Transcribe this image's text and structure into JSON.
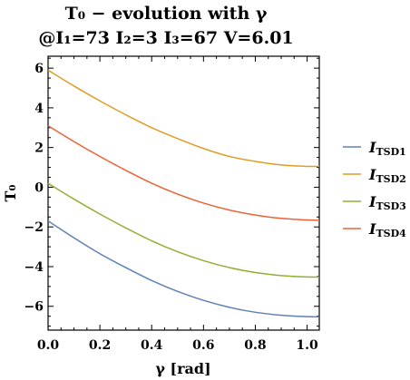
{
  "chart_data": {
    "type": "line",
    "title_line1": "T₀ − evolution with γ",
    "title_line2": "@I₁=73 I₂=3 I₃=67 V=6.01",
    "xlabel": "γ [rad]",
    "ylabel": "T₀",
    "xlim": [
      0,
      1.047
    ],
    "ylim": [
      -7.2,
      6.6
    ],
    "xticks": [
      0.0,
      0.2,
      0.4,
      0.6,
      0.8,
      1.0
    ],
    "xtick_labels": [
      "0.0",
      "0.2",
      "0.4",
      "0.6",
      "0.8",
      "1.0"
    ],
    "yticks": [
      -6,
      -4,
      -2,
      0,
      2,
      4,
      6
    ],
    "ytick_labels": [
      "−6",
      "−4",
      "−2",
      "0",
      "2",
      "4",
      "6"
    ],
    "legend_position": "right",
    "grid": false,
    "x": [
      0.0,
      0.1,
      0.2,
      0.3,
      0.4,
      0.5,
      0.6,
      0.7,
      0.8,
      0.9,
      1.0,
      1.047
    ],
    "series": [
      {
        "name": "I_TSD1",
        "color": "#5e81b5",
        "values": [
          -1.7,
          -2.55,
          -3.35,
          -4.05,
          -4.7,
          -5.25,
          -5.7,
          -6.05,
          -6.3,
          -6.45,
          -6.52,
          -6.53
        ]
      },
      {
        "name": "I_TSD2",
        "color": "#e19c24",
        "values": [
          5.9,
          5.1,
          4.35,
          3.65,
          3.0,
          2.45,
          1.95,
          1.55,
          1.3,
          1.12,
          1.05,
          1.05
        ]
      },
      {
        "name": "I_TSD3",
        "color": "#8fb032",
        "values": [
          0.2,
          -0.6,
          -1.35,
          -2.05,
          -2.7,
          -3.25,
          -3.7,
          -4.05,
          -4.3,
          -4.45,
          -4.52,
          -4.53
        ]
      },
      {
        "name": "I_TSD4",
        "color": "#eb6235",
        "values": [
          3.1,
          2.3,
          1.55,
          0.85,
          0.2,
          -0.35,
          -0.8,
          -1.15,
          -1.4,
          -1.57,
          -1.65,
          -1.67
        ]
      }
    ]
  },
  "legend": {
    "items": [
      {
        "main": "I",
        "sub": "TSD1",
        "color": "#5e81b5"
      },
      {
        "main": "I",
        "sub": "TSD2",
        "color": "#e19c24"
      },
      {
        "main": "I",
        "sub": "TSD3",
        "color": "#8fb032"
      },
      {
        "main": "I",
        "sub": "TSD4",
        "color": "#eb6235"
      }
    ]
  }
}
